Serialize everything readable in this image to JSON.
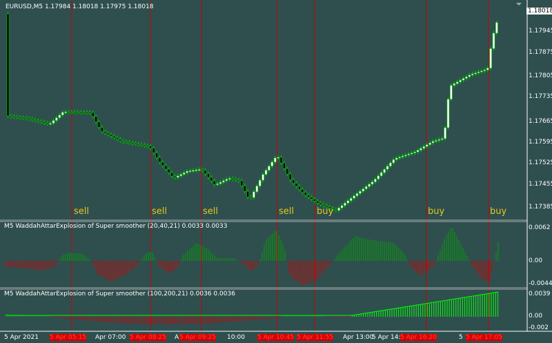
{
  "symbol_header": "EURUSD,M5  1.17984 1.18018 1.17975 1.18018",
  "price_axis": {
    "current_price": "1.18018",
    "labels": [
      "1.17945",
      "1.17875",
      "1.17805",
      "1.17735",
      "1.17665",
      "1.17595",
      "1.17525",
      "1.17455",
      "1.17385"
    ]
  },
  "indicator1": {
    "header": "M5  WaddahAttarExplosion of Super smoother (20,40,21) 0.0033 0.0033",
    "axis": [
      "0.0062",
      "0.00",
      "-0.0044"
    ]
  },
  "indicator2": {
    "header": "M5  WaddahAttarExplosion of Super smoother (100,200,21) 0.0036 0.0036",
    "axis": [
      "0.0039",
      "0.00",
      "-0.002"
    ]
  },
  "time_axis": [
    {
      "text": "5 Apr 2021",
      "red": false
    },
    {
      "text": "5 Apr 05:15",
      "red": true
    },
    {
      "text": "Apr 07:00",
      "red": false
    },
    {
      "text": "5 Apr 08:25",
      "red": true
    },
    {
      "text": "A",
      "red": false
    },
    {
      "text": "5 Apr 09:25",
      "red": true
    },
    {
      "text": "10:00",
      "red": false
    },
    {
      "text": "5 Apr 10:45",
      "red": true
    },
    {
      "text": "5 Apr 11:55",
      "red": true
    },
    {
      "text": "Apr 13:00",
      "red": false
    },
    {
      "text": "5 Apr 14:0",
      "red": false
    },
    {
      "text": "5 Apr 16:20",
      "red": true
    },
    {
      "text": "5",
      "red": false
    },
    {
      "text": "5 Apr 17:05",
      "red": true
    }
  ],
  "signals": [
    "sell",
    "sell",
    "sell",
    "sell",
    "buy",
    "buy",
    "buy"
  ],
  "colors": {
    "background": "#2f4f4f",
    "bull_candle": "#ffffff",
    "bear_candle": "#000000",
    "wick": "#00c800",
    "signal_line": "#c80000",
    "trend_up": "#00a000",
    "trend_down": "#d00000",
    "explosion_line": "#00ff00",
    "signal_text": "#e6c81e"
  }
}
